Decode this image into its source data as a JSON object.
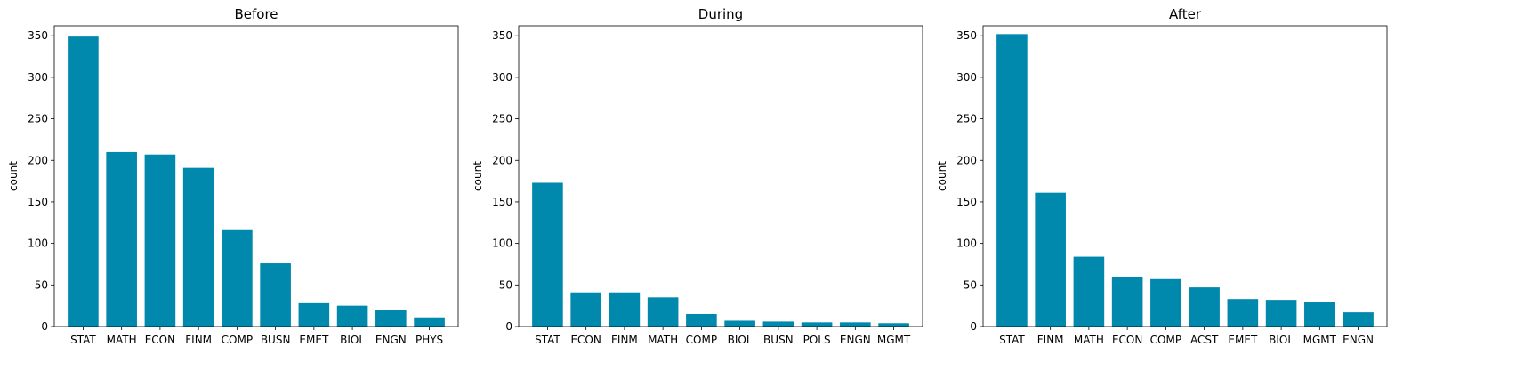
{
  "chart_data": [
    {
      "type": "bar",
      "title": "Before",
      "ylabel": "count",
      "xlabel": "",
      "categories": [
        "STAT",
        "MATH",
        "ECON",
        "FINM",
        "COMP",
        "BUSN",
        "EMET",
        "BIOL",
        "ENGN",
        "PHYS"
      ],
      "values": [
        349,
        210,
        207,
        191,
        117,
        76,
        28,
        25,
        20,
        11
      ],
      "ylim": [
        0,
        362
      ],
      "yticks": [
        0,
        50,
        100,
        150,
        200,
        250,
        300,
        350
      ],
      "bar_color": "#0088ad",
      "grid": false
    },
    {
      "type": "bar",
      "title": "During",
      "ylabel": "count",
      "xlabel": "",
      "categories": [
        "STAT",
        "ECON",
        "FINM",
        "MATH",
        "COMP",
        "BIOL",
        "BUSN",
        "POLS",
        "ENGN",
        "MGMT"
      ],
      "values": [
        173,
        41,
        41,
        35,
        15,
        7,
        6,
        5,
        5,
        4
      ],
      "ylim": [
        0,
        362
      ],
      "yticks": [
        0,
        50,
        100,
        150,
        200,
        250,
        300,
        350
      ],
      "bar_color": "#0088ad",
      "grid": false
    },
    {
      "type": "bar",
      "title": "After",
      "ylabel": "count",
      "xlabel": "",
      "categories": [
        "STAT",
        "FINM",
        "MATH",
        "ECON",
        "COMP",
        "ACST",
        "EMET",
        "BIOL",
        "MGMT",
        "ENGN"
      ],
      "values": [
        352,
        161,
        84,
        60,
        57,
        47,
        33,
        32,
        29,
        17
      ],
      "ylim": [
        0,
        362
      ],
      "yticks": [
        0,
        50,
        100,
        150,
        200,
        250,
        300,
        350
      ],
      "bar_color": "#0088ad",
      "grid": false
    }
  ]
}
